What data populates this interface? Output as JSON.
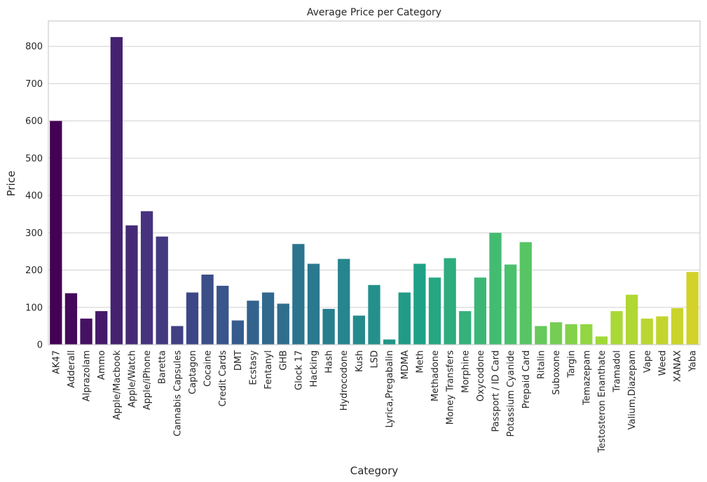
{
  "chart_data": {
    "type": "bar",
    "title": "Average Price per Category",
    "xlabel": "Category",
    "ylabel": "Price",
    "ylim": [
      0,
      868
    ],
    "yticks": [
      0,
      100,
      200,
      300,
      400,
      500,
      600,
      700,
      800
    ],
    "grid": "horizontal",
    "palette": "viridis",
    "color_start": "#440154",
    "color_end": "#d4d12a",
    "categories": [
      "AK47",
      "Adderall",
      "Alprazolam",
      "Ammo",
      "Apple/Macbook",
      "Apple/Watch",
      "Apple/iPhone",
      "Baretta",
      "Cannabis Capsules",
      "Captagon",
      "Cocaine",
      "Credit Cards",
      "DMT",
      "Ecstasy",
      "Fentanyl",
      "GHB",
      "Glock 17",
      "Hacking",
      "Hash",
      "Hydrocodone",
      "Kush",
      "LSD",
      "Lyrica,Pregabalin",
      "MDMA",
      "Meth",
      "Methadone",
      "Money Transfers",
      "Morphine",
      "Oxycodone",
      "Passport / ID Card",
      "Potassium Cyanide",
      "Prepaid Card",
      "Ritalin",
      "Suboxone",
      "Targin",
      "Temazepam",
      "Testosteron Enanthate",
      "Tramadol",
      "Valium,Diazepam",
      "Vape",
      "Weed",
      "XANAX",
      "Yaba"
    ],
    "values": [
      600,
      138,
      70,
      90,
      825,
      320,
      358,
      290,
      50,
      140,
      188,
      158,
      65,
      118,
      140,
      110,
      270,
      217,
      96,
      230,
      78,
      160,
      14,
      140,
      217,
      180,
      232,
      90,
      180,
      300,
      215,
      275,
      50,
      60,
      55,
      55,
      22,
      90,
      134,
      70,
      76,
      98,
      195
    ]
  }
}
